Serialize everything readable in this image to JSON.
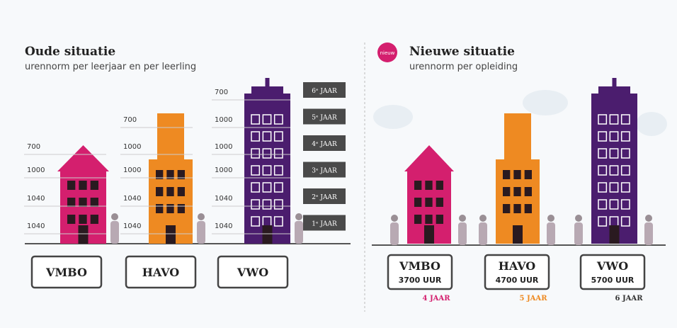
{
  "old": {
    "title": "Oude situatie",
    "subtitle": "urennorm per leerjaar en per leerling",
    "buildings": [
      {
        "label": "VMBO",
        "hours": [
          "700",
          "1000",
          "1040",
          "1040"
        ]
      },
      {
        "label": "HAVO",
        "hours": [
          "700",
          "1000",
          "1000",
          "1040",
          "1040"
        ]
      },
      {
        "label": "VWO",
        "hours": [
          "700",
          "1000",
          "1000",
          "1000",
          "1040",
          "1040"
        ]
      }
    ],
    "years": [
      "6ᵉ JAAR",
      "5ᵉ JAAR",
      "4ᵉ JAAR",
      "3ᵉ JAAR",
      "2ᵉ JAAR",
      "1ᵉ JAAR"
    ]
  },
  "new": {
    "badge": "nieuw",
    "title": "Nieuwe situatie",
    "subtitle": "urennorm per opleiding",
    "buildings": [
      {
        "label": "VMBO",
        "hours": "3700 UUR",
        "duration": "4 JAAR"
      },
      {
        "label": "HAVO",
        "hours": "4700 UUR",
        "duration": "5 JAAR"
      },
      {
        "label": "VWO",
        "hours": "5700 UUR",
        "duration": "6 JAAR"
      }
    ]
  }
}
